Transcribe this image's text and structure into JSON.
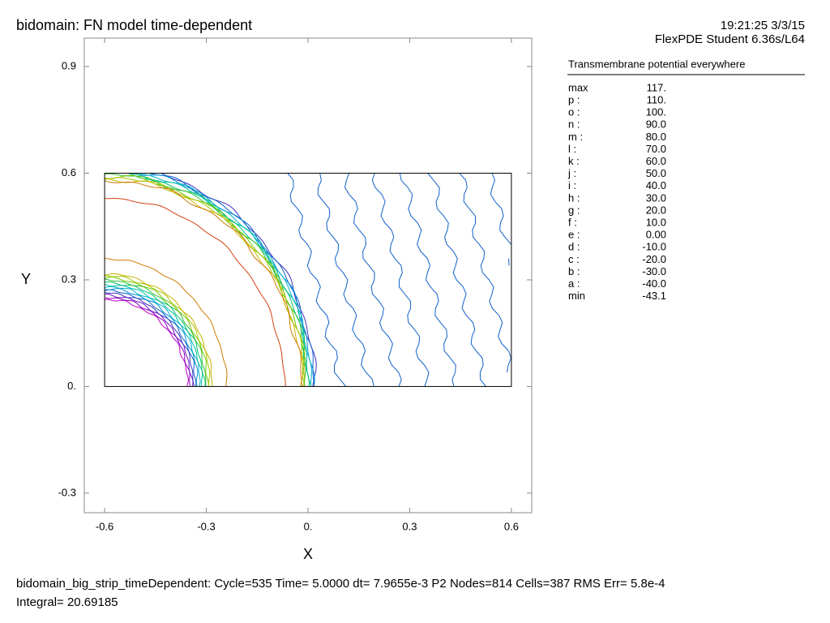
{
  "chart_data": {
    "type": "contour",
    "title": "bidomain: FN model time-dependent",
    "timestamp": "19:21:25 3/3/15",
    "software": "FlexPDE Student 6.36s/L64",
    "legend_title": "Transmembrane potential everywhere",
    "xlabel": "X",
    "ylabel": "Y",
    "xlim": [
      -0.66,
      0.66
    ],
    "ylim": [
      -0.355,
      0.98
    ],
    "xticks": [
      -0.6,
      -0.3,
      {
        "value": 0,
        "label": "0."
      },
      0.3,
      0.6
    ],
    "yticks": [
      -0.3,
      {
        "value": 0,
        "label": "0."
      },
      0.3,
      0.6,
      0.9
    ],
    "domain": {
      "x": [
        -0.6,
        0.6
      ],
      "y": [
        0,
        0.6
      ]
    },
    "max_label": "max",
    "max": {
      "value": 117,
      "label": "117."
    },
    "min_label": "min",
    "min": -43.1,
    "levels": {
      "names": [
        "p :",
        "o :",
        "n :",
        "m :",
        "l :",
        "k :",
        "j :",
        "i :",
        "h :",
        "g :",
        "f :",
        "e :",
        "d :",
        "c :",
        "b :",
        "a :"
      ],
      "values": [
        110,
        100,
        90,
        80,
        70,
        60,
        50,
        40,
        30,
        20,
        10,
        0,
        -10,
        -20,
        -30,
        -40
      ],
      "value_labels": [
        "110.",
        "100.",
        "90.0",
        "80.0",
        "70.0",
        "60.0",
        "50.0",
        "40.0",
        "30.0",
        "20.0",
        "10.0",
        "0.00",
        "-10.0",
        "-20.0",
        "-30.0",
        "-40.0"
      ],
      "colors": [
        "#d01010",
        "#d04010",
        "#d07a00",
        "#c8b400",
        "#a8c800",
        "#70c800",
        "#30c030",
        "#00c070",
        "#00c0a8",
        "#00b0c8",
        "#0090d8",
        "#1060c8",
        "#4030c0",
        "#6a10c0",
        "#9000c0",
        "#c000c8"
      ]
    },
    "footer": [
      "bidomain_big_strip_timeDependent:  Cycle=535  Time= 5.0000  dt= 7.9655e-3  P2  Nodes=814 Cells=387 RMS Err= 5.8e-4",
      "Integral=  20.69185"
    ]
  }
}
